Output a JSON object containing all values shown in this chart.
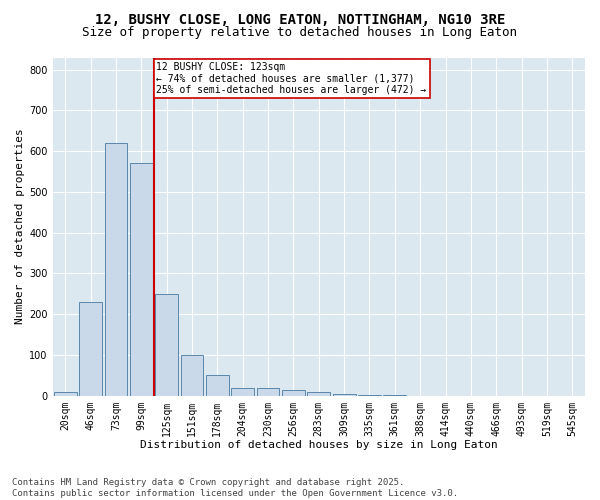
{
  "title1": "12, BUSHY CLOSE, LONG EATON, NOTTINGHAM, NG10 3RE",
  "title2": "Size of property relative to detached houses in Long Eaton",
  "xlabel": "Distribution of detached houses by size in Long Eaton",
  "ylabel": "Number of detached properties",
  "bar_labels": [
    "20sqm",
    "46sqm",
    "73sqm",
    "99sqm",
    "125sqm",
    "151sqm",
    "178sqm",
    "204sqm",
    "230sqm",
    "256sqm",
    "283sqm",
    "309sqm",
    "335sqm",
    "361sqm",
    "388sqm",
    "414sqm",
    "440sqm",
    "466sqm",
    "493sqm",
    "519sqm",
    "545sqm"
  ],
  "bar_values": [
    10,
    230,
    620,
    570,
    250,
    100,
    50,
    20,
    20,
    15,
    10,
    5,
    1,
    1,
    0,
    0,
    0,
    0,
    0,
    0,
    0
  ],
  "bar_color": "#c9d9e9",
  "bar_edge_color": "#5a87aa",
  "vline_color": "#cc0000",
  "annotation_text": "12 BUSHY CLOSE: 123sqm\n← 74% of detached houses are smaller (1,377)\n25% of semi-detached houses are larger (472) →",
  "annotation_box_color": "#cc0000",
  "ylim": [
    0,
    830
  ],
  "yticks": [
    0,
    100,
    200,
    300,
    400,
    500,
    600,
    700,
    800
  ],
  "footnote": "Contains HM Land Registry data © Crown copyright and database right 2025.\nContains public sector information licensed under the Open Government Licence v3.0.",
  "bg_color": "#ffffff",
  "plot_bg_color": "#dce8f0",
  "grid_color": "#ffffff",
  "title1_fontsize": 10,
  "title2_fontsize": 9,
  "xlabel_fontsize": 8,
  "ylabel_fontsize": 8,
  "tick_fontsize": 7,
  "footnote_fontsize": 6.5
}
